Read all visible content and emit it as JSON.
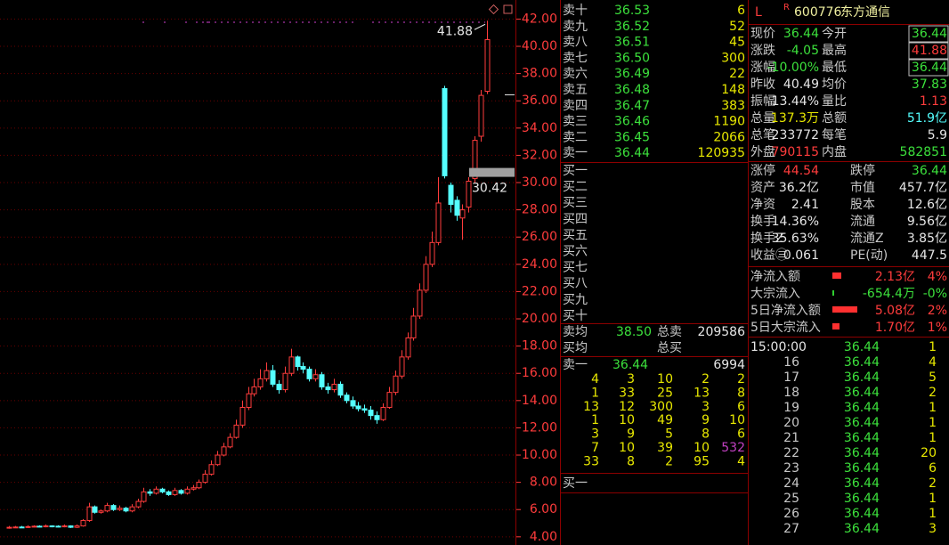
{
  "chart_data": {
    "type": "candlestick",
    "open": [
      4.68,
      4.7,
      4.72,
      4.7,
      4.75,
      4.78,
      4.75,
      4.8,
      4.78,
      4.75,
      4.8,
      4.7,
      4.8,
      5.2,
      6.2,
      5.8,
      5.9,
      6.3,
      6.0,
      6.1,
      5.9,
      6.2,
      6.6,
      7.3,
      7.2,
      7.5,
      7.3,
      7.1,
      7.4,
      7.2,
      7.5,
      7.6,
      8.0,
      8.6,
      9.3,
      10.0,
      10.6,
      11.3,
      12.2,
      13.5,
      14.5,
      15.0,
      15.6,
      16.2,
      15.2,
      14.8,
      16.0,
      17.2,
      16.5,
      16.3,
      15.6,
      15.9,
      15.0,
      14.8,
      15.2,
      14.4,
      14.0,
      13.6,
      13.4,
      13.3,
      12.9,
      12.6,
      13.5,
      14.6,
      15.8,
      17.2,
      18.6,
      20.2,
      22.1,
      24.0,
      25.6,
      36.9,
      29.8,
      28.7,
      27.4,
      28.2,
      30.3,
      33.4,
      36.7
    ],
    "high": [
      4.8,
      4.8,
      4.8,
      4.85,
      4.85,
      4.85,
      4.9,
      4.85,
      4.85,
      4.9,
      4.85,
      4.9,
      5.3,
      6.5,
      6.3,
      6.0,
      6.5,
      6.4,
      6.3,
      6.2,
      6.4,
      6.8,
      7.6,
      7.5,
      7.7,
      7.6,
      7.4,
      7.6,
      7.5,
      7.7,
      7.8,
      8.2,
      8.9,
      9.6,
      10.3,
      10.9,
      11.6,
      12.6,
      14.0,
      15.0,
      15.6,
      16.3,
      16.8,
      16.6,
      15.5,
      16.5,
      17.8,
      17.3,
      16.8,
      16.5,
      16.3,
      16.1,
      15.3,
      15.6,
      15.4,
      14.6,
      14.3,
      13.9,
      13.7,
      13.6,
      13.2,
      13.8,
      15.0,
      16.2,
      17.7,
      19.0,
      20.8,
      22.6,
      24.6,
      26.4,
      30.4,
      37.1,
      30.0,
      29.0,
      28.4,
      30.4,
      33.4,
      36.8,
      41.88
    ],
    "low": [
      4.6,
      4.65,
      4.65,
      4.65,
      4.7,
      4.7,
      4.7,
      4.7,
      4.7,
      4.7,
      4.65,
      4.65,
      4.75,
      5.1,
      5.7,
      5.7,
      5.8,
      5.9,
      5.9,
      5.8,
      5.8,
      6.1,
      6.5,
      7.0,
      7.1,
      7.2,
      7.0,
      7.0,
      7.1,
      7.1,
      7.4,
      7.5,
      7.9,
      8.5,
      9.2,
      9.9,
      10.5,
      11.2,
      12.0,
      13.3,
      14.3,
      14.8,
      15.4,
      15.0,
      14.5,
      14.6,
      15.8,
      16.2,
      16.0,
      15.4,
      15.4,
      14.8,
      14.5,
      14.6,
      14.2,
      13.8,
      13.4,
      13.2,
      13.1,
      12.6,
      12.3,
      12.5,
      13.4,
      14.4,
      15.6,
      17.0,
      18.4,
      20.0,
      21.9,
      23.8,
      25.4,
      30.3,
      27.8,
      27.2,
      25.8,
      27.8,
      30.0,
      33.0,
      36.5
    ],
    "close": [
      4.7,
      4.72,
      4.7,
      4.75,
      4.78,
      4.75,
      4.8,
      4.78,
      4.75,
      4.8,
      4.7,
      4.8,
      5.2,
      6.2,
      5.8,
      5.9,
      6.3,
      6.0,
      6.1,
      5.9,
      6.2,
      6.6,
      7.3,
      7.2,
      7.5,
      7.3,
      7.1,
      7.4,
      7.2,
      7.5,
      7.6,
      8.0,
      8.6,
      9.3,
      10.0,
      10.6,
      11.3,
      12.2,
      13.5,
      14.5,
      15.0,
      15.6,
      16.2,
      15.2,
      14.8,
      16.0,
      17.2,
      16.5,
      16.3,
      15.6,
      15.9,
      15.0,
      14.8,
      15.2,
      14.4,
      14.0,
      13.6,
      13.4,
      13.3,
      12.9,
      12.6,
      13.5,
      14.6,
      15.8,
      17.2,
      18.6,
      20.2,
      22.1,
      24.0,
      25.6,
      28.5,
      30.5,
      28.4,
      27.6,
      28.0,
      30.1,
      33.1,
      36.4,
      40.49
    ],
    "ylim": [
      3.4,
      43.4
    ],
    "yticks": [
      {
        "value": 4,
        "label": "4.00"
      },
      {
        "value": 6,
        "label": "6.00"
      },
      {
        "value": 8,
        "label": "8.00"
      },
      {
        "value": 10,
        "label": "10.00"
      },
      {
        "value": 12,
        "label": "12.00"
      },
      {
        "value": 14,
        "label": "14.00"
      },
      {
        "value": 16,
        "label": "16.00"
      },
      {
        "value": 18,
        "label": "18.00"
      },
      {
        "value": 20,
        "label": "20.00"
      },
      {
        "value": 22,
        "label": "22.00"
      },
      {
        "value": 24,
        "label": "24.00"
      },
      {
        "value": 26,
        "label": "26.00"
      },
      {
        "value": 28,
        "label": "28.00"
      },
      {
        "value": 30,
        "label": "30.00"
      },
      {
        "value": 32,
        "label": "32.00"
      },
      {
        "value": 34,
        "label": "34.00"
      },
      {
        "value": 36,
        "label": "36.00"
      },
      {
        "value": 38,
        "label": "38.00"
      },
      {
        "value": 40,
        "label": "40.00"
      },
      {
        "value": 42,
        "label": "42.00"
      }
    ],
    "up_color": "#ff3c3c",
    "down_color": "#54ffff",
    "grid": true,
    "annotations": [
      41.88,
      30.42
    ]
  },
  "order_book": {
    "asks": [
      [
        "卖十",
        "36.53",
        "6"
      ],
      [
        "卖九",
        "36.52",
        "52"
      ],
      [
        "卖八",
        "36.51",
        "45"
      ],
      [
        "卖七",
        "36.50",
        "300"
      ],
      [
        "卖六",
        "36.49",
        "22"
      ],
      [
        "卖五",
        "36.48",
        "148"
      ],
      [
        "卖四",
        "36.47",
        "383"
      ],
      [
        "卖三",
        "36.46",
        "1190"
      ],
      [
        "卖二",
        "36.45",
        "2066"
      ],
      [
        "卖一",
        "36.44",
        "120935"
      ]
    ],
    "bids": [
      "买一",
      "买二",
      "买三",
      "买四",
      "买五",
      "买六",
      "买七",
      "买八",
      "买九",
      "买十"
    ],
    "summary": [
      {
        "label": "卖均",
        "price": "38.50",
        "total_label": "总卖",
        "total": "209586"
      },
      {
        "label": "买均",
        "total_label": "总买"
      }
    ],
    "best_ask": {
      "label": "卖一",
      "price": "36.44",
      "vol": "6994"
    },
    "queue": [
      [
        "4",
        "3",
        "10",
        "2",
        "2"
      ],
      [
        "1",
        "33",
        "25",
        "13",
        "8"
      ],
      [
        "13",
        "12",
        "300",
        "3",
        "6"
      ],
      [
        "1",
        "10",
        "49",
        "9",
        "10"
      ],
      [
        "3",
        "9",
        "5",
        "8",
        "6"
      ],
      [
        "7",
        "10",
        "39",
        "10",
        "532"
      ],
      [
        "33",
        "8",
        "2",
        "95",
        "4"
      ]
    ],
    "best_bid_label": "买一"
  },
  "quote": {
    "prefix": "L",
    "flag": "R",
    "code": "600776",
    "name": "东方通信",
    "rows": [
      [
        "现价",
        "36.44",
        "今开",
        "36.44"
      ],
      [
        "涨跌",
        "-4.05",
        "最高",
        "41.88"
      ],
      [
        "涨幅",
        "-10.00%",
        "最低",
        "36.44"
      ],
      [
        "昨收",
        "40.49",
        "均价",
        "37.83"
      ],
      [
        "振幅",
        "13.44%",
        "量比",
        "1.13"
      ],
      [
        "总量",
        "137.3万",
        "总额",
        "51.9亿"
      ],
      [
        "总笔",
        "233772",
        "每笔",
        "5.9"
      ],
      [
        "外盘",
        "790115",
        "内盘",
        "582851"
      ]
    ],
    "fundamentals": [
      [
        "涨停",
        "44.54",
        "跌停",
        "36.44"
      ],
      [
        "资产",
        "36.2亿",
        "市值",
        "457.7亿"
      ],
      [
        "净资",
        "2.41",
        "股本",
        "12.6亿"
      ],
      [
        "换手",
        "14.36%",
        "流通",
        "9.56亿"
      ],
      [
        "换手Z",
        "35.63%",
        "流通Z",
        "3.85亿"
      ],
      [
        "收益㊂",
        "0.061",
        "PE(动)",
        "447.5"
      ]
    ],
    "flows": [
      [
        "净流入额",
        "2.13亿",
        "4%"
      ],
      [
        "大宗流入",
        "-654.4万",
        "-0%"
      ],
      [
        "5日净流入额",
        "5.08亿",
        "2%"
      ],
      [
        "5日大宗流入",
        "1.70亿",
        "1%"
      ]
    ],
    "ticks": [
      [
        "15:00:00",
        "36.44",
        "1"
      ],
      [
        "16",
        "36.44",
        "4"
      ],
      [
        "17",
        "36.44",
        "5"
      ],
      [
        "18",
        "36.44",
        "2"
      ],
      [
        "19",
        "36.44",
        "1"
      ],
      [
        "20",
        "36.44",
        "1"
      ],
      [
        "21",
        "36.44",
        "1"
      ],
      [
        "22",
        "36.44",
        "20"
      ],
      [
        "23",
        "36.44",
        "6"
      ],
      [
        "24",
        "36.44",
        "2"
      ],
      [
        "25",
        "36.44",
        "1"
      ],
      [
        "26",
        "36.44",
        "1"
      ],
      [
        "27",
        "36.44",
        "3"
      ]
    ]
  }
}
